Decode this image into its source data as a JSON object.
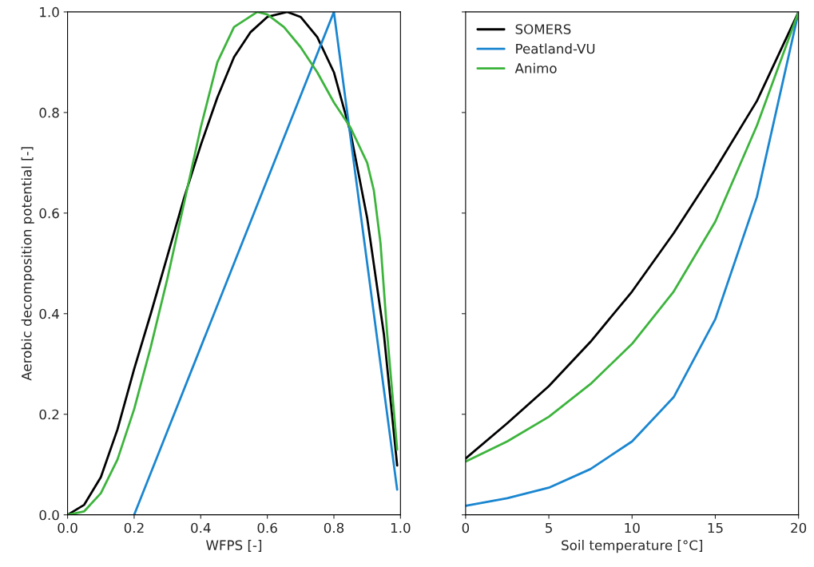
{
  "chart_data": [
    {
      "type": "line",
      "xlabel": "WFPS [-]",
      "ylabel": "Aerobic decomposition potential [-]",
      "xlim": [
        0,
        1
      ],
      "ylim": [
        0,
        1
      ],
      "xticks": [
        {
          "value": 0,
          "label": "0.0"
        },
        0.2,
        0.4,
        0.6,
        0.8,
        {
          "value": 1,
          "label": "1.0"
        }
      ],
      "yticks": [
        {
          "value": 0,
          "label": "0.0"
        },
        0.2,
        0.4,
        0.6,
        0.8,
        {
          "value": 1,
          "label": "1.0"
        }
      ],
      "grid": false,
      "legend": false,
      "series": [
        {
          "color": "#000000",
          "x": [
            0,
            0.05,
            0.1,
            0.15,
            0.2,
            0.25,
            0.3,
            0.35,
            0.4,
            0.45,
            0.5,
            0.55,
            0.6,
            0.66,
            0.7,
            0.75,
            0.8,
            0.85,
            0.9,
            0.95,
            0.99
          ],
          "values": [
            0,
            0.02,
            0.075,
            0.17,
            0.29,
            0.4,
            0.515,
            0.63,
            0.735,
            0.83,
            0.91,
            0.96,
            0.99,
            1.0,
            0.99,
            0.95,
            0.88,
            0.76,
            0.59,
            0.36,
            0.098
          ]
        },
        {
          "color": "#1a86d0",
          "x": [
            0.2,
            0.8,
            0.99
          ],
          "values": [
            0,
            1,
            0.05
          ]
        },
        {
          "color": "#3cb43c",
          "x": [
            0,
            0.05,
            0.1,
            0.15,
            0.2,
            0.25,
            0.3,
            0.35,
            0.4,
            0.45,
            0.5,
            0.57,
            0.6,
            0.65,
            0.7,
            0.75,
            0.8,
            0.85,
            0.9,
            0.92,
            0.94,
            0.96,
            0.99
          ],
          "values": [
            0,
            0.007,
            0.043,
            0.11,
            0.21,
            0.334,
            0.47,
            0.62,
            0.77,
            0.9,
            0.97,
            1.0,
            0.995,
            0.97,
            0.93,
            0.88,
            0.82,
            0.77,
            0.7,
            0.645,
            0.54,
            0.36,
            0.13
          ]
        }
      ]
    },
    {
      "type": "line",
      "xlabel": "Soil temperature [°C]",
      "xlim": [
        0,
        20
      ],
      "ylim": [
        0,
        1
      ],
      "xticks": [
        0,
        5,
        10,
        15,
        20
      ],
      "yticks": [
        {
          "value": 0,
          "label": null
        },
        {
          "value": 0.2,
          "label": null
        },
        {
          "value": 0.4,
          "label": null
        },
        {
          "value": 0.6,
          "label": null
        },
        {
          "value": 0.8,
          "label": null
        },
        {
          "value": 1,
          "label": null
        }
      ],
      "tick_labels": "x",
      "grid": false,
      "legend": "top left",
      "series": [
        {
          "name": "SOMERS",
          "color": "#000000",
          "x": [
            0,
            2.5,
            5,
            7.5,
            10,
            12.5,
            15,
            17.5,
            20
          ],
          "values": [
            0.112,
            0.182,
            0.256,
            0.344,
            0.444,
            0.56,
            0.687,
            0.823,
            1.0
          ]
        },
        {
          "name": "Peatland-VU",
          "color": "#1a86d0",
          "x": [
            0,
            2.5,
            5,
            7.5,
            10,
            12.5,
            15,
            17.5,
            20
          ],
          "values": [
            0.018,
            0.033,
            0.054,
            0.091,
            0.146,
            0.234,
            0.389,
            0.632,
            1.0
          ]
        },
        {
          "name": "Animo",
          "color": "#3cb43c",
          "x": [
            0,
            2.5,
            5,
            7.5,
            10,
            12.5,
            15,
            17.5,
            20
          ],
          "values": [
            0.106,
            0.146,
            0.195,
            0.26,
            0.34,
            0.444,
            0.583,
            0.774,
            1.0
          ]
        }
      ]
    }
  ]
}
